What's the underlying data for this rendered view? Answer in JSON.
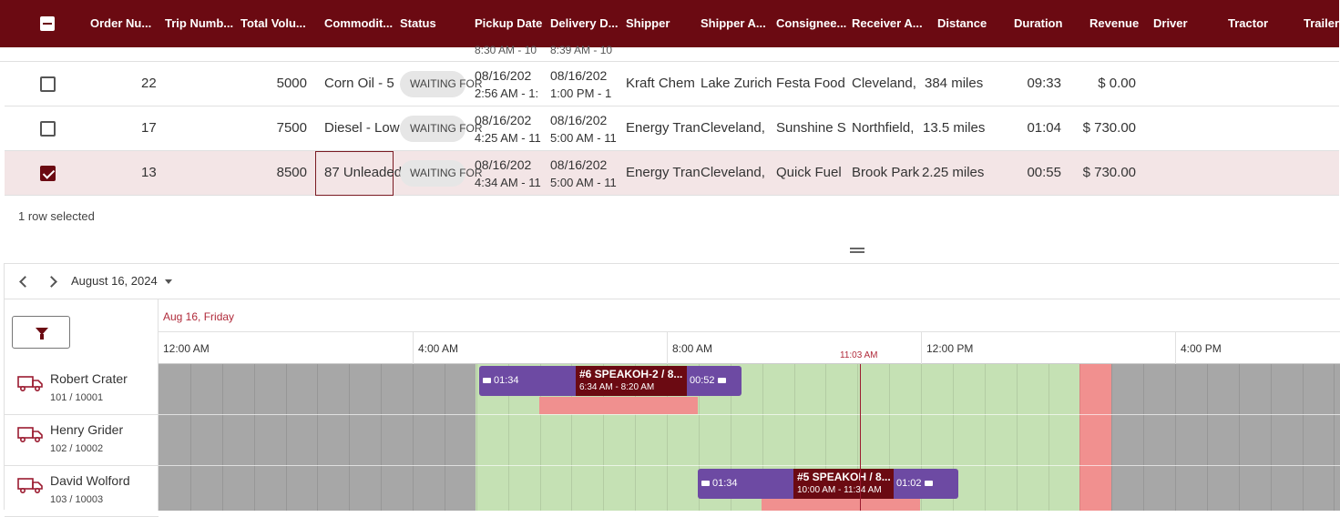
{
  "grid": {
    "headers": {
      "order_number": "Order Nu...",
      "trip_number": "Trip Numb...",
      "total_volume": "Total Volu...",
      "commodity": "Commodit...",
      "status": "Status",
      "pickup_date": "Pickup Date",
      "delivery_date": "Delivery D...",
      "shipper": "Shipper",
      "shipper_address": "Shipper A...",
      "consignee": "Consignee...",
      "receiver_address": "Receiver A...",
      "distance": "Distance",
      "duration": "Duration",
      "revenue": "Revenue",
      "driver": "Driver",
      "tractor": "Tractor",
      "trailer": "Trailer"
    },
    "peek_row": {
      "pickup": "8:30 AM - 10",
      "delivery": "8:39 AM - 10"
    },
    "rows": [
      {
        "selected": false,
        "order_number": "22",
        "total_volume": "5000",
        "commodity": "Corn Oil - 5",
        "status": "WAITING FOR",
        "pickup_date": "08/16/202",
        "pickup_time": "2:56 AM - 1:",
        "delivery_date": "08/16/202",
        "delivery_time": "1:00 PM - 1",
        "shipper": "Kraft Chem",
        "shipper_address": "Lake Zurich",
        "consignee": "Festa Food",
        "receiver_address": "Cleveland,",
        "distance": "384 miles",
        "duration": "09:33",
        "revenue": "$ 0.00"
      },
      {
        "selected": false,
        "order_number": "17",
        "total_volume": "7500",
        "commodity": "Diesel - Low",
        "status": "WAITING FOR",
        "pickup_date": "08/16/202",
        "pickup_time": "4:25 AM - 11",
        "delivery_date": "08/16/202",
        "delivery_time": "5:00 AM - 11",
        "shipper": "Energy Tran",
        "shipper_address": "Cleveland,",
        "consignee": "Sunshine S",
        "receiver_address": "Northfield,",
        "distance": "13.5 miles",
        "duration": "01:04",
        "revenue": "$ 730.00"
      },
      {
        "selected": true,
        "order_number": "13",
        "total_volume": "8500",
        "commodity": "87 Unleaded",
        "status": "WAITING FOR",
        "pickup_date": "08/16/202",
        "pickup_time": "4:34 AM - 11",
        "delivery_date": "08/16/202",
        "delivery_time": "5:00 AM - 11",
        "shipper": "Energy Tran",
        "shipper_address": "Cleveland,",
        "consignee": "Quick Fuel",
        "receiver_address": "Brook Park",
        "distance": "2.25 miles",
        "duration": "00:55",
        "revenue": "$ 730.00"
      }
    ],
    "footer": "1 row selected"
  },
  "scheduler": {
    "date_label": "August 16, 2024",
    "day_header": "Aug 16, Friday",
    "hours": [
      "12:00 AM",
      "4:00 AM",
      "8:00 AM",
      "12:00 PM",
      "4:00 PM"
    ],
    "now_label": "11:03 AM",
    "resources": [
      {
        "name": "Robert Crater",
        "sub": "101 / 10001"
      },
      {
        "name": "Henry Grider",
        "sub": "102 / 10002"
      },
      {
        "name": "David Wolford",
        "sub": "103 / 10003"
      }
    ],
    "events": [
      {
        "before": "01:34",
        "title": "#6 SPEAKOH-2 / 8...",
        "time": "6:34 AM - 8:20 AM",
        "after": "00:52"
      },
      {
        "before": "01:34",
        "title": "#5 SPEAKOH / 8...",
        "time": "10:00 AM - 11:34 AM",
        "after": "01:02"
      }
    ],
    "colors": {
      "unavailable": "#a7a7a7",
      "available": "#c5e1b4",
      "blocked": "#f1908f",
      "event": "#6d4aa3",
      "trip": "#6b0a12",
      "now_line": "#9b1b30"
    }
  }
}
